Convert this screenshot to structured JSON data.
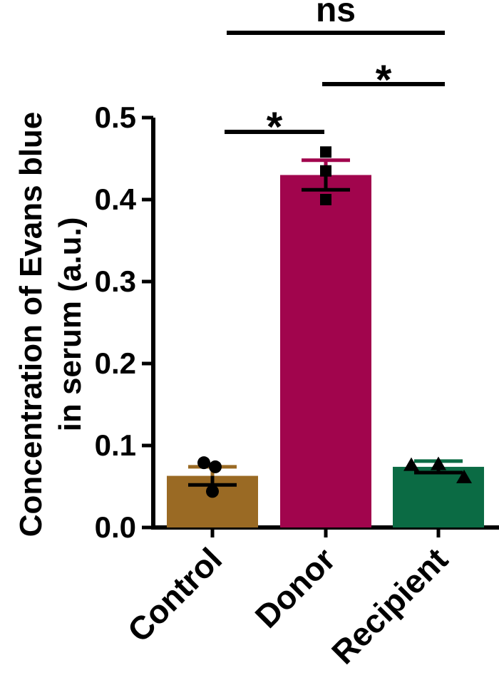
{
  "chart_data": {
    "type": "bar",
    "ylabel_lines": [
      "Concentration of Evans blue",
      "in serum (a.u.)"
    ],
    "categories": [
      "Control",
      "Donor",
      "Recipient"
    ],
    "values": [
      0.063,
      0.43,
      0.074
    ],
    "sem": [
      0.011,
      0.018,
      0.007
    ],
    "bar_colors": [
      "#9a6a24",
      "#a1054d",
      "#0b6b44"
    ],
    "markers": [
      "circle",
      "square",
      "triangle"
    ],
    "points": [
      [
        0.079,
        0.074,
        0.044
      ],
      [
        0.458,
        0.435,
        0.4
      ],
      [
        0.076,
        0.077,
        0.061
      ]
    ],
    "ylim": [
      0,
      0.5
    ],
    "yticks": [
      "0.0",
      "0.1",
      "0.2",
      "0.3",
      "0.4",
      "0.5"
    ],
    "significance": [
      {
        "from": 0,
        "to": 1,
        "label": "*"
      },
      {
        "from": 1,
        "to": 2,
        "label": "*"
      },
      {
        "from": 0,
        "to": 2,
        "label": "ns"
      }
    ]
  },
  "colors": {
    "axis": "#000000"
  }
}
